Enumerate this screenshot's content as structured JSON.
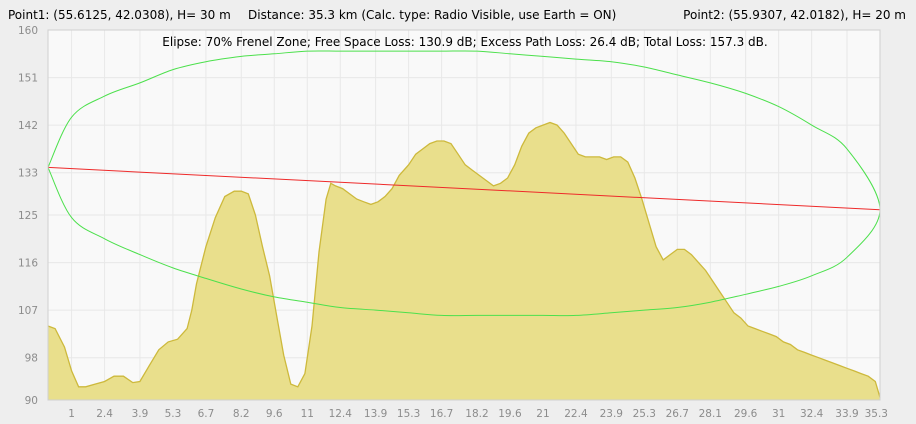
{
  "header": {
    "point1": "Point1: (55.6125, 42.0308), H= 30 m",
    "distance": "Distance: 35.3 km (Calc. type: Radio Visible, use Earth = ON)",
    "point2": "Point2: (55.9307, 42.0182), H= 20 m"
  },
  "subtitle": "Elipse: 70% Frenel Zone;  Free Space Loss: 130.9 dB;  Excess Path Loss: 26.4 dB;   Total Loss: 157.3 dB.",
  "colors": {
    "plot_bg": "#f9f9f9",
    "grid": "#e8e8e8",
    "terrain_fill": "#e9df8c",
    "terrain_line": "#cdb93c",
    "line_of_sight": "#ee2a2a",
    "fresnel": "#4ce04c",
    "tick_text": "#8c8c8c"
  },
  "chart_data": {
    "type": "area",
    "xlabel": "",
    "ylabel": "",
    "xlim": [
      0,
      35.3
    ],
    "ylim": [
      90,
      160
    ],
    "x_ticks": [
      "1",
      "2.4",
      "3.9",
      "5.3",
      "6.7",
      "8.2",
      "9.6",
      "11",
      "12.4",
      "13.9",
      "15.3",
      "16.7",
      "18.2",
      "19.6",
      "21",
      "22.4",
      "23.9",
      "25.3",
      "26.7",
      "28.1",
      "29.6",
      "31",
      "32.4",
      "33.9",
      "35.3"
    ],
    "y_ticks": [
      "90",
      "98",
      "107",
      "116",
      "125",
      "133",
      "142",
      "151",
      "160"
    ],
    "grid": true,
    "series": [
      {
        "kind": "terrain",
        "x": [
          0,
          0.3,
          0.7,
          1.0,
          1.3,
          1.6,
          2.0,
          2.4,
          2.8,
          3.2,
          3.6,
          3.9,
          4.3,
          4.7,
          5.1,
          5.5,
          5.9,
          6.1,
          6.3,
          6.7,
          7.1,
          7.5,
          7.9,
          8.2,
          8.5,
          8.8,
          9.1,
          9.4,
          9.7,
          10.0,
          10.3,
          10.6,
          10.9,
          11.2,
          11.5,
          11.8,
          12.0,
          12.2,
          12.5,
          12.8,
          13.1,
          13.4,
          13.7,
          14.0,
          14.3,
          14.6,
          14.9,
          15.3,
          15.6,
          15.9,
          16.2,
          16.5,
          16.8,
          17.1,
          17.4,
          17.7,
          18.0,
          18.3,
          18.6,
          18.9,
          19.2,
          19.5,
          19.8,
          20.1,
          20.4,
          20.7,
          21.0,
          21.3,
          21.6,
          21.9,
          22.2,
          22.5,
          22.8,
          23.1,
          23.4,
          23.7,
          24.0,
          24.3,
          24.6,
          24.9,
          25.2,
          25.5,
          25.8,
          26.1,
          26.4,
          26.7,
          27.0,
          27.3,
          27.6,
          27.9,
          28.2,
          28.5,
          28.8,
          29.1,
          29.4,
          29.7,
          30.0,
          30.3,
          30.6,
          30.9,
          31.2,
          31.5,
          31.8,
          32.1,
          32.4,
          32.7,
          33.0,
          33.3,
          33.6,
          33.9,
          34.2,
          34.5,
          34.8,
          35.1,
          35.3
        ],
        "y": [
          104,
          103.5,
          100,
          95.5,
          92.5,
          92.5,
          93,
          93.5,
          94.5,
          94.5,
          93.3,
          93.5,
          96.5,
          99.5,
          101,
          101.5,
          103.5,
          107,
          112,
          119,
          124.5,
          128.5,
          129.5,
          129.5,
          129,
          125,
          119,
          113.5,
          106,
          98.5,
          93,
          92.5,
          95,
          104,
          118,
          128,
          131,
          130.5,
          130,
          129,
          128,
          127.5,
          127,
          127.5,
          128.5,
          130,
          132.5,
          134.5,
          136.5,
          137.5,
          138.5,
          139,
          139,
          138.5,
          136.5,
          134.5,
          133.5,
          132.5,
          131.5,
          130.5,
          131,
          132,
          134.5,
          138,
          140.5,
          141.5,
          142,
          142.5,
          142,
          140.5,
          138.5,
          136.5,
          136,
          136,
          136,
          135.5,
          136,
          136,
          135,
          132,
          128,
          123.5,
          119,
          116.5,
          117.5,
          118.5,
          118.5,
          117.5,
          116,
          114.5,
          112.5,
          110.5,
          108.5,
          106.5,
          105.5,
          104,
          103.5,
          103,
          102.5,
          102,
          101,
          100.5,
          99.5,
          99,
          98.5,
          98,
          97.5,
          97,
          96.5,
          96,
          95.5,
          95,
          94.5,
          93.5,
          90.5
        ]
      },
      {
        "kind": "line_of_sight",
        "x": [
          0,
          35.3
        ],
        "y": [
          134,
          126
        ]
      },
      {
        "kind": "fresnel_ellipse",
        "x": [
          0,
          1,
          2.4,
          3.9,
          5.3,
          6.7,
          8.2,
          9.6,
          11,
          12.4,
          13.9,
          15.3,
          16.7,
          18.2,
          19.6,
          21,
          22.4,
          23.9,
          25.3,
          26.7,
          28.1,
          29.6,
          31,
          32.4,
          33.9,
          35.3
        ],
        "y_upper": [
          134,
          143.5,
          147.5,
          150,
          152.5,
          154,
          155,
          155.5,
          156,
          156,
          156,
          156,
          156,
          156,
          155.5,
          155,
          154.5,
          154,
          153,
          151.5,
          150,
          148,
          145.5,
          142,
          137.5,
          126
        ],
        "y_lower": [
          134,
          124.5,
          120.5,
          117.5,
          115,
          113,
          111,
          109.5,
          108.5,
          107.5,
          107,
          106.5,
          106,
          106,
          106,
          106,
          106,
          106.5,
          107,
          107.5,
          108.5,
          110,
          111.5,
          113.5,
          117,
          126
        ]
      }
    ]
  }
}
